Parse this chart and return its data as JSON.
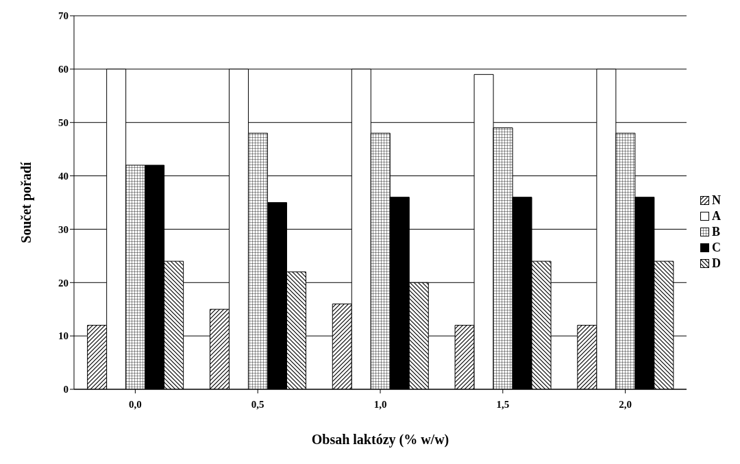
{
  "chart_data": {
    "type": "bar",
    "xlabel": "Obsah laktózy (% w/w)",
    "ylabel": "Součet pořadí",
    "categories": [
      "0,0",
      "0,5",
      "1,0",
      "1,5",
      "2,0"
    ],
    "series": [
      {
        "name": "N",
        "color": "#000000",
        "values": [
          12,
          15,
          16,
          12,
          12
        ]
      },
      {
        "name": "A",
        "color": "#ffffff",
        "values": [
          60,
          60,
          60,
          59,
          60
        ]
      },
      {
        "name": "B",
        "color": "#000000",
        "values": [
          42,
          48,
          48,
          49,
          48
        ]
      },
      {
        "name": "C",
        "color": "#000000",
        "values": [
          42,
          35,
          36,
          36,
          36
        ]
      },
      {
        "name": "D",
        "color": "#000000",
        "values": [
          24,
          22,
          20,
          24,
          24
        ]
      }
    ],
    "ylim": [
      0,
      70
    ],
    "yticks": [
      0,
      10,
      20,
      30,
      40,
      50,
      60,
      70
    ],
    "grid": "y",
    "legend": "right"
  }
}
